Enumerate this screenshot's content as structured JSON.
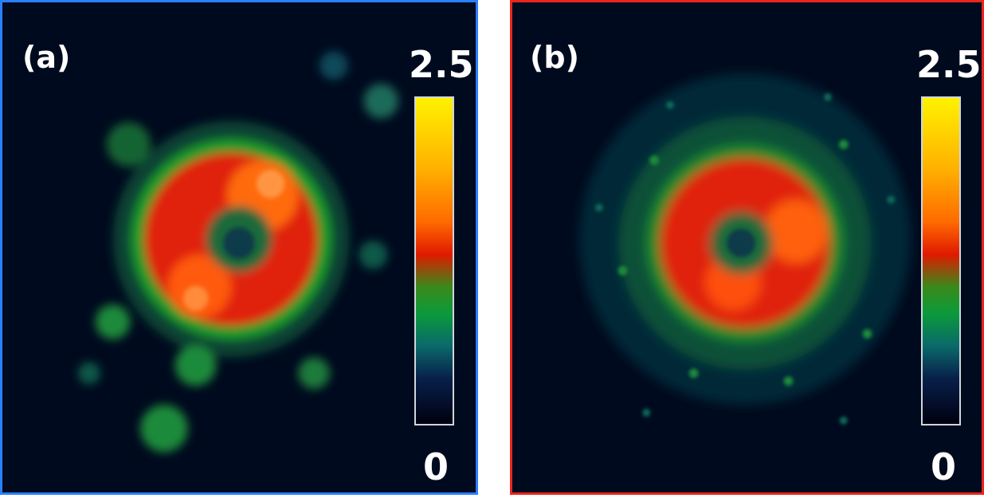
{
  "panels": [
    {
      "id": "a",
      "label": "(a)",
      "colorbar_max": "2.5",
      "colorbar_min": "0",
      "border_color": "#2a7fff"
    },
    {
      "id": "b",
      "label": "(b)",
      "colorbar_max": "2.5",
      "colorbar_min": "0",
      "border_color": "#e8261e"
    }
  ],
  "colormap": [
    "#000010",
    "#08204a",
    "#0a6a6a",
    "#0b9a3a",
    "#3a8a1a",
    "#e01a00",
    "#ff6a00",
    "#ffb000",
    "#fff200"
  ]
}
